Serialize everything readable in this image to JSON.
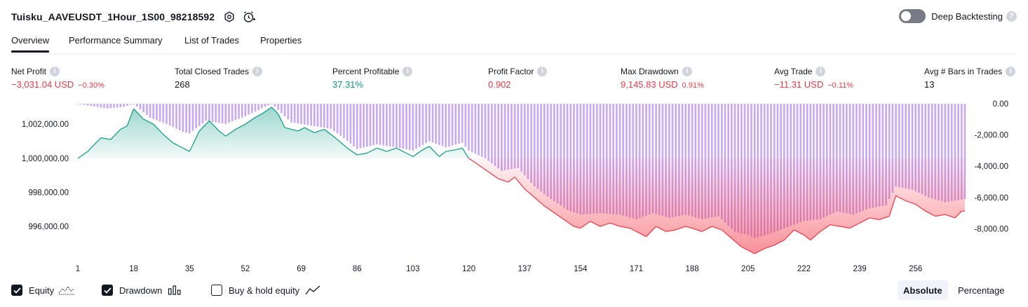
{
  "header": {
    "strategy_title": "Tuisku_AAVEUSDT_1Hour_1S00_98218592",
    "deep_backtesting_label": "Deep Backtesting",
    "deep_backtesting_enabled": false
  },
  "tabs": [
    {
      "label": "Overview",
      "active": true
    },
    {
      "label": "Performance Summary",
      "active": false
    },
    {
      "label": "List of Trades",
      "active": false
    },
    {
      "label": "Properties",
      "active": false
    }
  ],
  "metrics": [
    {
      "label": "Net Profit",
      "value": "−3,031.04 USD",
      "pct": "−0.30%",
      "tone": "neg"
    },
    {
      "label": "Total Closed Trades",
      "value": "268",
      "pct": "",
      "tone": "plain"
    },
    {
      "label": "Percent Profitable",
      "value": "37.31%",
      "pct": "",
      "tone": "pos"
    },
    {
      "label": "Profit Factor",
      "value": "0.902",
      "pct": "",
      "tone": "neg"
    },
    {
      "label": "Max Drawdown",
      "value": "9,145.83 USD",
      "pct": "0.91%",
      "tone": "neg"
    },
    {
      "label": "Avg Trade",
      "value": "−11.31 USD",
      "pct": "−0.11%",
      "tone": "neg"
    },
    {
      "label": "Avg # Bars in Trades",
      "value": "13",
      "pct": "",
      "tone": "plain"
    }
  ],
  "colors": {
    "profit": "#089981",
    "loss": "#f23645",
    "drawdown_bar": "#c9a7f5",
    "text": "#131722",
    "axis_text": "#131722"
  },
  "chart_data": {
    "type": "area",
    "x_ticks": [
      "1",
      "18",
      "35",
      "52",
      "69",
      "86",
      "103",
      "120",
      "137",
      "154",
      "171",
      "188",
      "205",
      "222",
      "239",
      "256"
    ],
    "x_range": [
      1,
      271
    ],
    "baseline": 1000000,
    "left_axis": {
      "ticks": [
        "1,002,000.00",
        "1,000,000.00",
        "998,000.00",
        "996,000.00"
      ],
      "tick_values": [
        1002000,
        1000000,
        998000,
        996000
      ],
      "range": [
        994400,
        1003200
      ]
    },
    "right_axis": {
      "ticks": [
        "0.00",
        "-2,000.00",
        "-4,000.00",
        "-6,000.00",
        "-8,000.00"
      ],
      "tick_values": [
        0,
        -2000,
        -4000,
        -6000,
        -8000
      ],
      "range": [
        -9600,
        0
      ]
    },
    "equity": {
      "name": "Equity",
      "points": [
        [
          1,
          1000000
        ],
        [
          4,
          1000400
        ],
        [
          8,
          1001200
        ],
        [
          11,
          1001100
        ],
        [
          14,
          1001700
        ],
        [
          16,
          1001900
        ],
        [
          18,
          1002900
        ],
        [
          21,
          1002300
        ],
        [
          24,
          1002000
        ],
        [
          27,
          1001400
        ],
        [
          30,
          1000900
        ],
        [
          33,
          1000600
        ],
        [
          35,
          1000400
        ],
        [
          38,
          1001600
        ],
        [
          41,
          1002200
        ],
        [
          44,
          1001600
        ],
        [
          46,
          1001300
        ],
        [
          49,
          1001700
        ],
        [
          52,
          1002000
        ],
        [
          55,
          1002400
        ],
        [
          57,
          1002600
        ],
        [
          60,
          1003000
        ],
        [
          62,
          1002600
        ],
        [
          64,
          1001800
        ],
        [
          66,
          1001700
        ],
        [
          68,
          1001600
        ],
        [
          70,
          1001800
        ],
        [
          73,
          1001500
        ],
        [
          76,
          1001700
        ],
        [
          78,
          1001400
        ],
        [
          80,
          1001100
        ],
        [
          83,
          1000600
        ],
        [
          86,
          1000200
        ],
        [
          89,
          1000300
        ],
        [
          92,
          1000600
        ],
        [
          95,
          1000400
        ],
        [
          98,
          1000600
        ],
        [
          101,
          1000300
        ],
        [
          103,
          1000100
        ],
        [
          106,
          1000500
        ],
        [
          108,
          1000700
        ],
        [
          111,
          1000100
        ],
        [
          113,
          1000400
        ],
        [
          116,
          1000500
        ],
        [
          118,
          1000600
        ],
        [
          120,
          1000000
        ],
        [
          123,
          999600
        ],
        [
          126,
          999200
        ],
        [
          129,
          998800
        ],
        [
          132,
          998600
        ],
        [
          134,
          998900
        ],
        [
          137,
          998200
        ],
        [
          140,
          997700
        ],
        [
          143,
          997200
        ],
        [
          146,
          996800
        ],
        [
          149,
          996400
        ],
        [
          152,
          996000
        ],
        [
          154,
          995900
        ],
        [
          157,
          996300
        ],
        [
          160,
          996000
        ],
        [
          163,
          996200
        ],
        [
          166,
          996000
        ],
        [
          169,
          995900
        ],
        [
          171,
          995700
        ],
        [
          174,
          995400
        ],
        [
          177,
          996000
        ],
        [
          180,
          995700
        ],
        [
          183,
          995800
        ],
        [
          186,
          996000
        ],
        [
          188,
          995900
        ],
        [
          191,
          995700
        ],
        [
          194,
          996000
        ],
        [
          197,
          995800
        ],
        [
          200,
          995300
        ],
        [
          203,
          994800
        ],
        [
          205,
          994600
        ],
        [
          207,
          994400
        ],
        [
          210,
          994700
        ],
        [
          213,
          994900
        ],
        [
          216,
          995200
        ],
        [
          219,
          995800
        ],
        [
          222,
          995500
        ],
        [
          224,
          995200
        ],
        [
          227,
          995700
        ],
        [
          230,
          996100
        ],
        [
          233,
          996000
        ],
        [
          236,
          995900
        ],
        [
          239,
          996200
        ],
        [
          242,
          996500
        ],
        [
          245,
          996400
        ],
        [
          248,
          996600
        ],
        [
          250,
          997800
        ],
        [
          253,
          997500
        ],
        [
          256,
          997300
        ],
        [
          259,
          996900
        ],
        [
          262,
          996600
        ],
        [
          265,
          996700
        ],
        [
          268,
          996500
        ],
        [
          270,
          996900
        ],
        [
          271,
          996900
        ]
      ]
    },
    "drawdown": {
      "name": "Drawdown",
      "points": [
        [
          1,
          0
        ],
        [
          5,
          -150
        ],
        [
          10,
          -300
        ],
        [
          15,
          -200
        ],
        [
          18,
          0
        ],
        [
          23,
          -900
        ],
        [
          28,
          -1300
        ],
        [
          33,
          -1800
        ],
        [
          35,
          -1900
        ],
        [
          40,
          -1100
        ],
        [
          46,
          -1300
        ],
        [
          52,
          -800
        ],
        [
          58,
          -200
        ],
        [
          60,
          0
        ],
        [
          66,
          -1200
        ],
        [
          72,
          -1400
        ],
        [
          78,
          -1600
        ],
        [
          82,
          -2200
        ],
        [
          86,
          -2900
        ],
        [
          92,
          -2600
        ],
        [
          98,
          -2800
        ],
        [
          103,
          -3000
        ],
        [
          108,
          -2400
        ],
        [
          113,
          -2800
        ],
        [
          118,
          -2500
        ],
        [
          120,
          -3000
        ],
        [
          125,
          -3500
        ],
        [
          130,
          -4300
        ],
        [
          135,
          -4100
        ],
        [
          140,
          -5300
        ],
        [
          145,
          -6100
        ],
        [
          150,
          -6800
        ],
        [
          154,
          -7100
        ],
        [
          160,
          -7000
        ],
        [
          166,
          -7100
        ],
        [
          171,
          -7400
        ],
        [
          176,
          -7000
        ],
        [
          181,
          -7300
        ],
        [
          186,
          -7100
        ],
        [
          191,
          -7400
        ],
        [
          196,
          -7200
        ],
        [
          201,
          -8200
        ],
        [
          205,
          -8400
        ],
        [
          207,
          -8600
        ],
        [
          212,
          -8300
        ],
        [
          217,
          -7900
        ],
        [
          222,
          -7500
        ],
        [
          227,
          -7400
        ],
        [
          232,
          -6900
        ],
        [
          237,
          -7100
        ],
        [
          242,
          -6700
        ],
        [
          247,
          -6500
        ],
        [
          250,
          -5300
        ],
        [
          255,
          -5500
        ],
        [
          260,
          -6000
        ],
        [
          265,
          -6300
        ],
        [
          271,
          -6100
        ]
      ]
    },
    "series_legend": [
      "Equity",
      "Drawdown",
      "Buy & hold equity"
    ]
  },
  "legend": {
    "items": [
      {
        "label": "Equity",
        "checked": true
      },
      {
        "label": "Drawdown",
        "checked": true
      },
      {
        "label": "Buy & hold equity",
        "checked": false
      }
    ]
  },
  "modes": [
    {
      "label": "Absolute",
      "active": true
    },
    {
      "label": "Percentage",
      "active": false
    }
  ]
}
